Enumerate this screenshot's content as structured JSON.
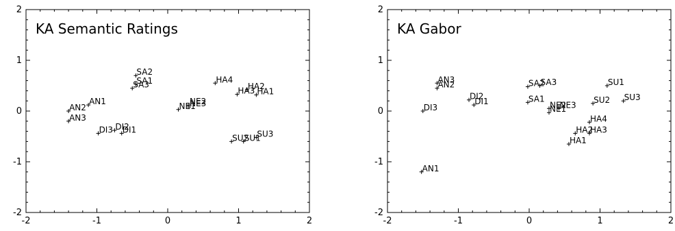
{
  "chart_data": [
    {
      "type": "scatter",
      "title": "KA Semantic Ratings",
      "xlim": [
        -2,
        2
      ],
      "ylim": [
        -2,
        2
      ],
      "xticks": [
        "-2",
        "-1",
        "0",
        "1",
        "2"
      ],
      "yticks": [
        "-2",
        "-1",
        "0",
        "1",
        "2"
      ],
      "grid": false,
      "points": [
        {
          "label": "SA2",
          "x": -0.45,
          "y": 0.7
        },
        {
          "label": "SA1",
          "x": -0.45,
          "y": 0.53
        },
        {
          "label": "SA3",
          "x": -0.5,
          "y": 0.45
        },
        {
          "label": "HA4",
          "x": 0.67,
          "y": 0.55
        },
        {
          "label": "HA2",
          "x": 1.12,
          "y": 0.42
        },
        {
          "label": "HA3",
          "x": 0.98,
          "y": 0.33
        },
        {
          "label": "HA1",
          "x": 1.25,
          "y": 0.32
        },
        {
          "label": "AN1",
          "x": -1.12,
          "y": 0.12
        },
        {
          "label": "AN2",
          "x": -1.4,
          "y": 0.0
        },
        {
          "label": "AN3",
          "x": -1.4,
          "y": -0.2
        },
        {
          "label": "NE1",
          "x": 0.15,
          "y": 0.03
        },
        {
          "label": "NE2",
          "x": 0.3,
          "y": 0.12
        },
        {
          "label": "NE3",
          "x": 0.3,
          "y": 0.08
        },
        {
          "label": "DI2",
          "x": -0.75,
          "y": -0.38
        },
        {
          "label": "DI3",
          "x": -0.98,
          "y": -0.44
        },
        {
          "label": "DI1",
          "x": -0.65,
          "y": -0.44
        },
        {
          "label": "SU3",
          "x": 1.25,
          "y": -0.52
        },
        {
          "label": "SU2",
          "x": 0.9,
          "y": -0.6
        },
        {
          "label": "SU1",
          "x": 1.07,
          "y": -0.6
        }
      ]
    },
    {
      "type": "scatter",
      "title": "KA Gabor",
      "xlim": [
        -2,
        2
      ],
      "ylim": [
        -2,
        2
      ],
      "xticks": [
        "-2",
        "-1",
        "0",
        "1",
        "2"
      ],
      "yticks": [
        "-2",
        "-1",
        "0",
        "1",
        "2"
      ],
      "grid": false,
      "points": [
        {
          "label": "AN3",
          "x": -1.3,
          "y": 0.55
        },
        {
          "label": "AN2",
          "x": -1.3,
          "y": 0.45
        },
        {
          "label": "SA2",
          "x": -0.02,
          "y": 0.48
        },
        {
          "label": "SA3",
          "x": 0.15,
          "y": 0.5
        },
        {
          "label": "SU1",
          "x": 1.1,
          "y": 0.5
        },
        {
          "label": "DI2",
          "x": -0.85,
          "y": 0.22
        },
        {
          "label": "DI1",
          "x": -0.78,
          "y": 0.12
        },
        {
          "label": "SA1",
          "x": -0.02,
          "y": 0.17
        },
        {
          "label": "SU2",
          "x": 0.9,
          "y": 0.15
        },
        {
          "label": "SU3",
          "x": 1.33,
          "y": 0.2
        },
        {
          "label": "NE2",
          "x": 0.28,
          "y": 0.05
        },
        {
          "label": "NE3",
          "x": 0.42,
          "y": 0.05
        },
        {
          "label": "NE1",
          "x": 0.28,
          "y": -0.03
        },
        {
          "label": "DI3",
          "x": -1.5,
          "y": 0.0
        },
        {
          "label": "HA4",
          "x": 0.85,
          "y": -0.22
        },
        {
          "label": "HA2",
          "x": 0.65,
          "y": -0.44
        },
        {
          "label": "HA3",
          "x": 0.85,
          "y": -0.44
        },
        {
          "label": "HA1",
          "x": 0.56,
          "y": -0.65
        },
        {
          "label": "AN1",
          "x": -1.52,
          "y": -1.2
        }
      ]
    }
  ]
}
